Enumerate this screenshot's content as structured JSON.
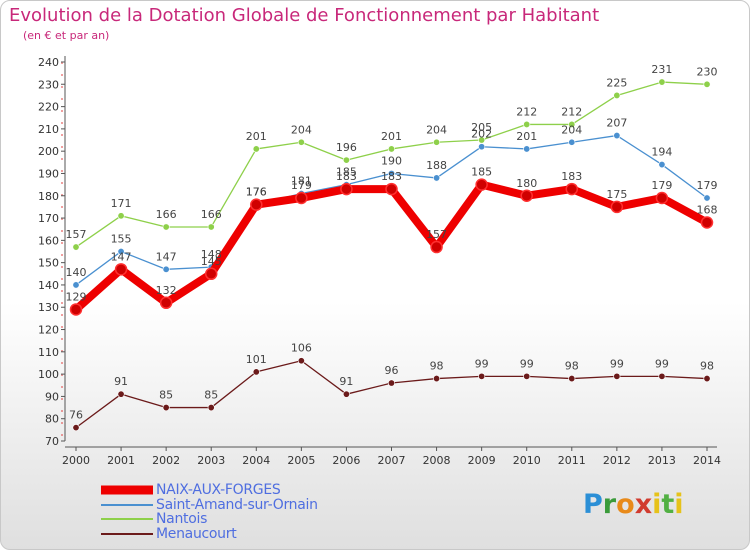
{
  "title": "Evolution de la Dotation Globale de Fonctionnement par Habitant",
  "subtitle": "(en € et par an)",
  "logo_text": "Proxiti",
  "chart_data": {
    "type": "line",
    "title": "Evolution de la Dotation Globale de Fonctionnement par Habitant",
    "subtitle": "(en € et par an)",
    "categories": [
      "2000",
      "2001",
      "2002",
      "2003",
      "2004",
      "2005",
      "2006",
      "2007",
      "2008",
      "2009",
      "2010",
      "2011",
      "2012",
      "2013",
      "2014"
    ],
    "ylim": [
      70,
      240
    ],
    "yticks": [
      70,
      80,
      90,
      100,
      110,
      120,
      130,
      140,
      150,
      160,
      170,
      180,
      190,
      200,
      210,
      220,
      230,
      240
    ],
    "grid": false,
    "legend_position": "bottom",
    "series": [
      {
        "name": "NAIX-AUX-FORGES",
        "color": "#ee0000",
        "values": [
          129,
          147,
          132,
          145,
          176,
          179,
          183,
          183,
          157,
          185,
          180,
          183,
          175,
          179,
          168
        ],
        "labels": [
          "129",
          "147",
          "132",
          "145",
          "176",
          "179",
          "183",
          "183",
          "157",
          "185",
          "180",
          "183",
          "175",
          "179",
          "168"
        ]
      },
      {
        "name": "Saint-Amand-sur-Ornain",
        "color": "#4a90d0",
        "values": [
          140,
          155,
          147,
          148,
          176,
          181,
          185,
          190,
          188,
          202,
          201,
          204,
          207,
          194,
          179
        ],
        "labels": [
          "140",
          "155",
          "147",
          "148",
          "176",
          "181",
          "185",
          "190",
          "188",
          "202",
          "201",
          "204",
          "207",
          "194",
          "179"
        ]
      },
      {
        "name": "Nantois",
        "color": "#8ed04a",
        "values": [
          157,
          171,
          166,
          166,
          201,
          204,
          196,
          201,
          204,
          205,
          212,
          212,
          225,
          231,
          230
        ],
        "labels": [
          "157",
          "171",
          "166",
          "166",
          "201",
          "204",
          "196",
          "201",
          "204",
          "205",
          "212",
          "212",
          "225",
          "231",
          "230"
        ]
      },
      {
        "name": "Menaucourt",
        "color": "#6b1a1a",
        "values": [
          76,
          91,
          85,
          85,
          101,
          106,
          91,
          96,
          98,
          99,
          99,
          98,
          99,
          99,
          98
        ],
        "labels": [
          "76",
          "91",
          "85",
          "85",
          "101",
          "106",
          "91",
          "96",
          "98",
          "99",
          "99",
          "98",
          "99",
          "99",
          "98"
        ]
      }
    ]
  },
  "legend": [
    {
      "label": "NAIX-AUX-FORGES",
      "color": "#ee0000",
      "thickness": 9
    },
    {
      "label": "Saint-Amand-sur-Ornain",
      "color": "#4a90d0",
      "thickness": 2
    },
    {
      "label": "Nantois",
      "color": "#8ed04a",
      "thickness": 2
    },
    {
      "label": "Menaucourt",
      "color": "#6b1a1a",
      "thickness": 2
    }
  ]
}
